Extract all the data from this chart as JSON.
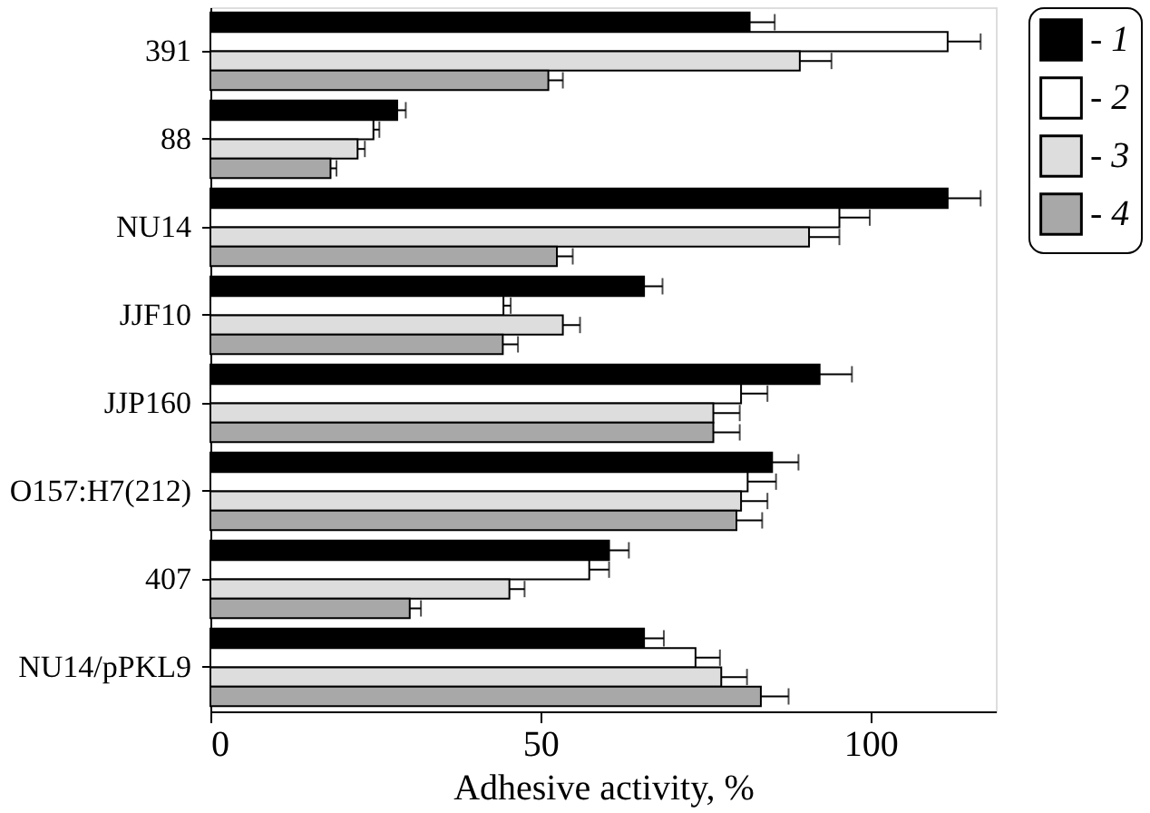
{
  "chart_data": {
    "type": "bar",
    "orientation": "horizontal",
    "xlabel": "Adhesive activity, %",
    "categories": [
      "391",
      "88",
      "NU14",
      "JJF10",
      "JJP160",
      "O157:H7(212)",
      "407",
      "NU14/pPKL9"
    ],
    "series": [
      {
        "name": "- 1",
        "color": "#000000",
        "values": [
          81.7,
          28.3,
          111.7,
          65.7,
          92.3,
          85.1,
          60.4,
          65.7
        ],
        "errors": [
          3.8,
          1.3,
          5,
          2.8,
          4.9,
          4,
          3,
          3
        ]
      },
      {
        "name": "- 2",
        "color": "#ffffff",
        "values": [
          111.7,
          24.7,
          95.3,
          44.4,
          80.4,
          81.4,
          57.4,
          73.5
        ],
        "errors": [
          5,
          0.9,
          4.6,
          1.1,
          4,
          4.3,
          3,
          3.7
        ]
      },
      {
        "name": "- 3",
        "color": "#dddddd",
        "values": [
          89.3,
          22.3,
          90.7,
          53.4,
          76.2,
          80.4,
          45.3,
          77.4
        ],
        "errors": [
          4.8,
          1.1,
          4.6,
          2.6,
          4,
          4,
          2.3,
          3.9
        ]
      },
      {
        "name": "- 4",
        "color": "#a8a8a8",
        "values": [
          51.2,
          18.2,
          52.5,
          44.3,
          76.2,
          79.7,
          30.2,
          83.4
        ],
        "errors": [
          2.2,
          0.9,
          2.4,
          2.3,
          4,
          3.9,
          1.7,
          4.2
        ]
      }
    ],
    "xlim": [
      0,
      119
    ],
    "xticks": [
      0,
      50,
      100
    ],
    "grid": false,
    "legend": "right"
  }
}
